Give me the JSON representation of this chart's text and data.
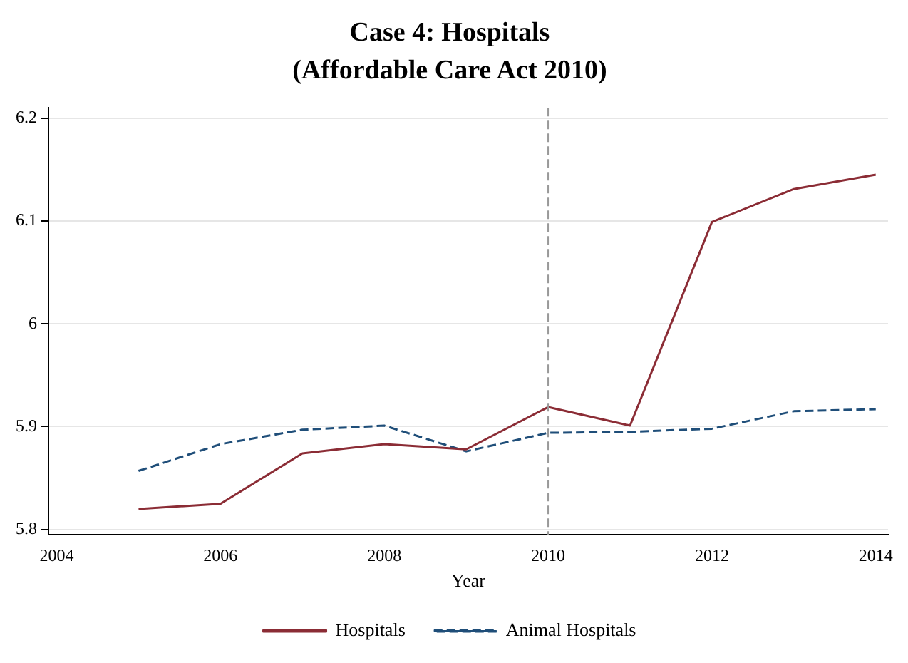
{
  "chart_data": {
    "type": "line",
    "title": "Case 4: Hospitals",
    "subtitle": "(Affordable Care Act 2010)",
    "xlabel": "Year",
    "x": [
      2005,
      2006,
      2007,
      2008,
      2009,
      2010,
      2011,
      2012,
      2013,
      2014
    ],
    "series": [
      {
        "name": "Hospitals",
        "color": "#8b2c35",
        "line_style": "solid",
        "values": [
          5.82,
          5.825,
          5.874,
          5.883,
          5.878,
          5.919,
          5.901,
          6.099,
          6.131,
          6.145
        ]
      },
      {
        "name": "Animal Hospitals",
        "color": "#1f4e79",
        "line_style": "dashed",
        "values": [
          5.857,
          5.883,
          5.897,
          5.901,
          5.876,
          5.894,
          5.895,
          5.898,
          5.915,
          5.917
        ]
      }
    ],
    "xlim": [
      2003.9,
      2014.15
    ],
    "xticks": [
      2004,
      2006,
      2008,
      2010,
      2012,
      2014
    ],
    "ylim": [
      5.795,
      6.21
    ],
    "yticks": [
      5.8,
      5.9,
      6,
      6.1,
      6.2
    ],
    "ref_lines": [
      {
        "axis": "x",
        "value": 2010,
        "color": "#999999",
        "line_style": "dashed"
      }
    ],
    "grid": "y",
    "legend": "bottom",
    "marker": "none"
  }
}
